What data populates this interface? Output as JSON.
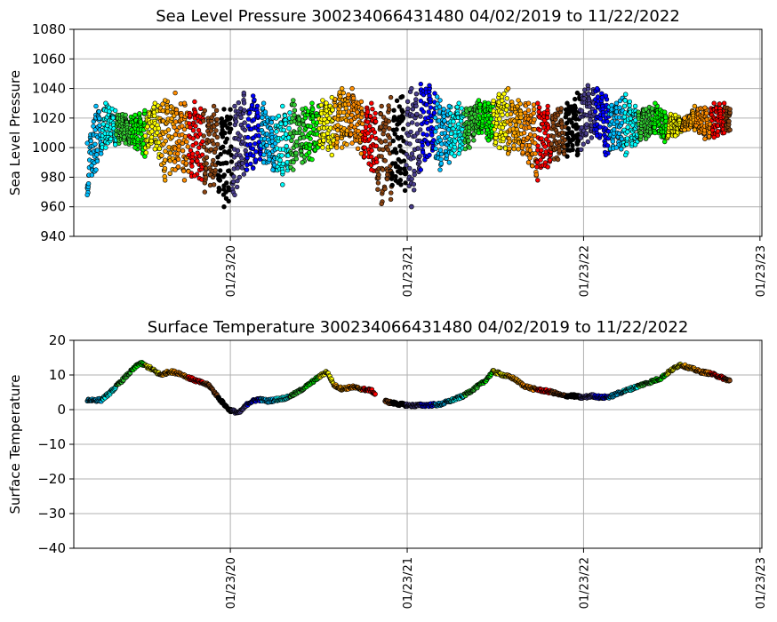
{
  "chart_data": [
    {
      "type": "scatter",
      "title": "Sea Level Pressure 300234066431480  04/02/2019 to 11/22/2022",
      "xlabel": "",
      "ylabel": "Sea Level Pressure",
      "xlim": [
        "2019-03-05",
        "2023-01-27"
      ],
      "ylim": [
        940,
        1080
      ],
      "yticks": [
        940,
        960,
        980,
        1000,
        1020,
        1040,
        1060,
        1080
      ],
      "xticks": [
        "2020-01-23",
        "2021-01-23",
        "2022-01-23",
        "2023-01-23"
      ],
      "xtick_labels": [
        "01/23/20",
        "01/23/21",
        "01/23/22",
        "01/23/23"
      ],
      "grid": true,
      "marker_edge_color": "#000000",
      "color_cycle": [
        "#00bfff",
        "#00ffff",
        "#32cd32",
        "#00ff00",
        "#ffff00",
        "#ffa500",
        "#ff8c00",
        "#ff0000",
        "#8b4513",
        "#000000",
        "#483d8b",
        "#0000ff"
      ],
      "x": [
        "2019-04-02",
        "2019-04-20",
        "2019-05-10",
        "2019-05-30",
        "2019-06-20",
        "2019-07-10",
        "2019-07-30",
        "2019-08-20",
        "2019-09-10",
        "2019-10-01",
        "2019-10-20",
        "2019-11-10",
        "2019-12-01",
        "2019-12-20",
        "2020-01-10",
        "2020-02-01",
        "2020-02-20",
        "2020-03-10",
        "2020-04-01",
        "2020-04-20",
        "2020-05-10",
        "2020-06-01",
        "2020-06-20",
        "2020-07-10",
        "2020-08-01",
        "2020-08-20",
        "2020-09-10",
        "2020-10-01",
        "2020-10-20",
        "2020-11-10",
        "2020-12-01",
        "2020-12-20",
        "2021-01-10",
        "2021-02-01",
        "2021-02-20",
        "2021-03-10",
        "2021-04-01",
        "2021-04-20",
        "2021-05-10",
        "2021-06-01",
        "2021-06-20",
        "2021-07-10",
        "2021-08-01",
        "2021-08-20",
        "2021-09-10",
        "2021-10-01",
        "2021-10-20",
        "2021-11-10",
        "2021-12-01",
        "2021-12-20",
        "2022-01-10",
        "2022-02-01",
        "2022-02-20",
        "2022-03-10",
        "2022-04-01",
        "2022-04-20",
        "2022-05-10",
        "2022-06-01",
        "2022-06-20",
        "2022-07-10",
        "2022-08-01",
        "2022-08-20",
        "2022-09-10",
        "2022-10-01",
        "2022-10-20",
        "2022-11-10",
        "2022-11-22"
      ],
      "y_low": [
        968,
        985,
        1000,
        1002,
        1003,
        1000,
        994,
        999,
        978,
        985,
        978,
        981,
        970,
        975,
        960,
        968,
        982,
        986,
        990,
        985,
        975,
        985,
        990,
        992,
        1000,
        995,
        1000,
        1003,
        996,
        985,
        962,
        965,
        975,
        960,
        985,
        995,
        985,
        990,
        996,
        1000,
        1010,
        1005,
        1000,
        996,
        999,
        990,
        978,
        987,
        992,
        994,
        995,
        1004,
        1008,
        995,
        1000,
        995,
        1002,
        1006,
        1010,
        1004,
        1008,
        1012,
        1012,
        1006,
        1007,
        1010,
        1012
      ],
      "y_high": [
        1003,
        1028,
        1030,
        1025,
        1022,
        1022,
        1025,
        1030,
        1032,
        1037,
        1030,
        1031,
        1025,
        1028,
        1026,
        1028,
        1037,
        1035,
        1030,
        1020,
        1028,
        1032,
        1026,
        1030,
        1032,
        1034,
        1040,
        1040,
        1031,
        1030,
        1028,
        1034,
        1034,
        1040,
        1043,
        1042,
        1032,
        1028,
        1030,
        1026,
        1032,
        1030,
        1036,
        1040,
        1032,
        1030,
        1030,
        1028,
        1026,
        1030,
        1037,
        1042,
        1040,
        1035,
        1030,
        1036,
        1028,
        1026,
        1030,
        1024,
        1022,
        1020,
        1028,
        1027,
        1030,
        1030,
        1026
      ]
    },
    {
      "type": "scatter",
      "title": "Surface Temperature 300234066431480  04/02/2019 to 11/22/2022",
      "xlabel": "",
      "ylabel": "Surface Temperature",
      "xlim": [
        "2019-03-05",
        "2023-01-27"
      ],
      "ylim": [
        -40,
        20
      ],
      "yticks": [
        -40,
        -30,
        -20,
        -10,
        0,
        10,
        20
      ],
      "xticks": [
        "2020-01-23",
        "2021-01-23",
        "2022-01-23",
        "2023-01-23"
      ],
      "xtick_labels": [
        "01/23/20",
        "01/23/21",
        "01/23/22",
        "01/23/23"
      ],
      "grid": true,
      "marker_edge_color": "#000000",
      "color_cycle": [
        "#00bfff",
        "#00ffff",
        "#32cd32",
        "#00ff00",
        "#ffff00",
        "#ffa500",
        "#ff8c00",
        "#ff0000",
        "#8b4513",
        "#000000",
        "#483d8b",
        "#0000ff"
      ],
      "x": [
        "2019-04-02",
        "2019-05-01",
        "2019-05-20",
        "2019-06-10",
        "2019-07-01",
        "2019-07-20",
        "2019-08-10",
        "2019-09-01",
        "2019-09-20",
        "2019-10-10",
        "2019-11-01",
        "2019-11-20",
        "2019-12-10",
        "2020-01-01",
        "2020-01-20",
        "2020-02-10",
        "2020-03-01",
        "2020-03-20",
        "2020-04-10",
        "2020-05-01",
        "2020-05-20",
        "2020-06-10",
        "2020-07-01",
        "2020-07-20",
        "2020-08-10",
        "2020-08-25",
        "2020-09-10",
        "2020-10-01",
        "2020-10-20",
        "2020-11-10",
        "2020-12-01",
        "2020-12-20",
        "2021-01-10",
        "2021-02-01",
        "2021-03-01",
        "2021-04-01",
        "2021-05-01",
        "2021-05-20",
        "2021-06-10",
        "2021-07-01",
        "2021-07-20",
        "2021-08-10",
        "2021-09-01",
        "2021-09-20",
        "2021-10-10",
        "2021-11-01",
        "2021-11-20",
        "2021-12-10",
        "2022-01-01",
        "2022-01-20",
        "2022-02-10",
        "2022-03-01",
        "2022-03-20",
        "2022-04-10",
        "2022-05-01",
        "2022-05-20",
        "2022-06-10",
        "2022-07-01",
        "2022-07-20",
        "2022-08-10",
        "2022-09-01",
        "2022-09-20",
        "2022-10-10",
        "2022-11-01",
        "2022-11-22"
      ],
      "y": [
        2.8,
        2.8,
        5,
        8,
        11,
        13.5,
        12,
        10,
        11,
        10.5,
        9,
        8,
        7,
        3,
        0,
        -1,
        2,
        3,
        2.5,
        3,
        3.5,
        5,
        7,
        9,
        11,
        7,
        6,
        6.5,
        6,
        5.5,
        2.8,
        2,
        1.5,
        1.2,
        1.3,
        1.5,
        3,
        4,
        6,
        8,
        11,
        10,
        9,
        7,
        6,
        5.5,
        5,
        4,
        4,
        3.5,
        4,
        3.5,
        3.8,
        5,
        6,
        7,
        8,
        9,
        11,
        13,
        12,
        11,
        10.5,
        9.5,
        8.3
      ]
    }
  ]
}
